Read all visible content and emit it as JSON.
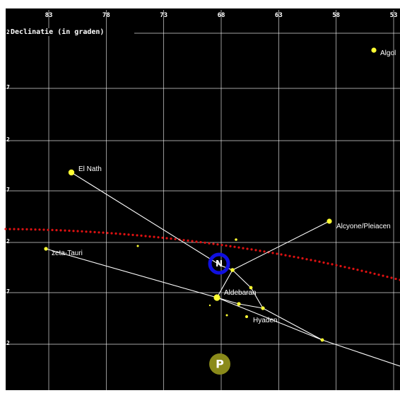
{
  "chart": {
    "axis_title": "Declinatie (in graden)",
    "x_ticks": [
      {
        "value": 83,
        "label": "83"
      },
      {
        "value": 78,
        "label": "78"
      },
      {
        "value": 73,
        "label": "73"
      },
      {
        "value": 68,
        "label": "68"
      },
      {
        "value": 63,
        "label": "63"
      },
      {
        "value": 58,
        "label": "58"
      },
      {
        "value": 53,
        "label": "53"
      }
    ],
    "y_stub_labels": [
      "2",
      "7",
      "2",
      "7",
      "2",
      "7",
      "2"
    ],
    "colors": {
      "background": "#000000",
      "grid": "#ffffff",
      "star": "#ffff33",
      "constellation_line": "#ffffff",
      "ecliptic": "#dd1111",
      "neptune": "#1010e0",
      "pluto": "#8a8a1a"
    }
  },
  "chart_data": {
    "type": "scatter",
    "title": "",
    "xlabel": "Declinatie (in graden)",
    "ylabel": "",
    "x_ticks": [
      83,
      78,
      73,
      68,
      63,
      58,
      53
    ],
    "labeled_stars": [
      {
        "name": "Algol",
        "label": "Algol"
      },
      {
        "name": "El Nath",
        "label": "El Nath"
      },
      {
        "name": "Alcyone/Pleiaden",
        "label": "Alcyone/Pleiacen"
      },
      {
        "name": "zeta-Tauri",
        "label": "zeta-Tauri"
      },
      {
        "name": "Aldebaran",
        "label": "Aldebaran"
      },
      {
        "name": "Hyaden",
        "label": "Hyaden"
      }
    ],
    "planets": [
      {
        "name": "Neptune",
        "symbol": "N"
      },
      {
        "name": "Pluto",
        "symbol": "P"
      }
    ],
    "ecliptic": "dotted red line"
  }
}
